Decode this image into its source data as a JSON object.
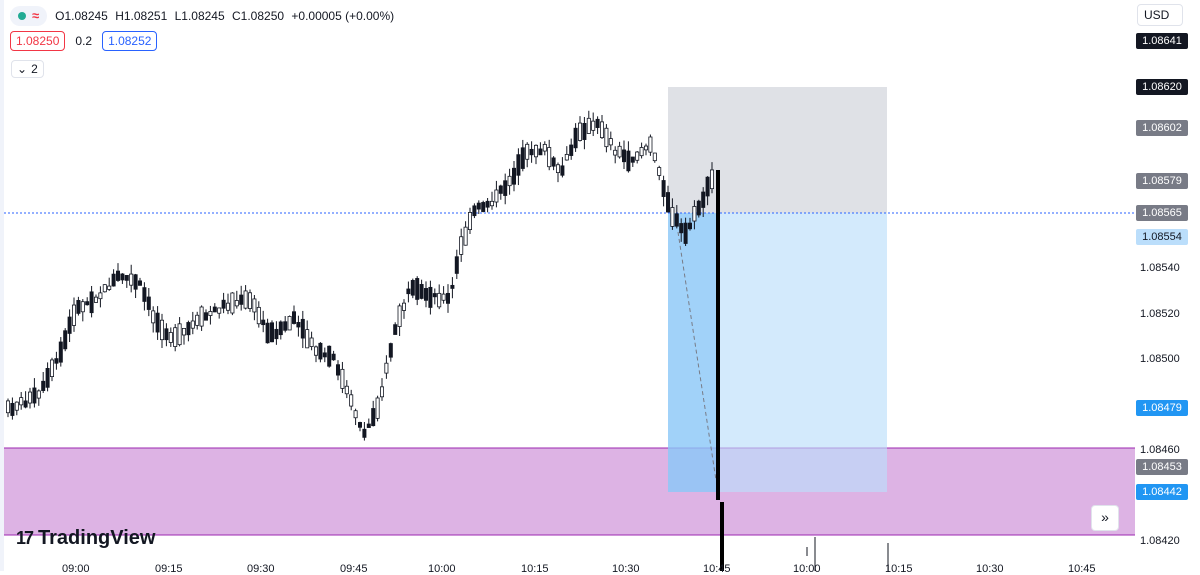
{
  "legend": {
    "ohlc": {
      "open": "O1.08245",
      "high": "H1.08251",
      "low": "L1.08245",
      "close": "C1.08250",
      "change": "+0.00005 (+0.00%)"
    },
    "symbol_icon": "wave-icon"
  },
  "trade": {
    "sell": "1.08250",
    "spread": "0.2",
    "buy": "1.08252"
  },
  "collapse": {
    "label": "2",
    "icon": "chevron-down-icon"
  },
  "currency": "USD",
  "price_axis": {
    "ticks": [
      "1.08540",
      "1.08520",
      "1.08500",
      "1.08460",
      "1.08420"
    ],
    "labels": [
      {
        "text": "1.08641",
        "bg": "#131722"
      },
      {
        "text": "1.08620",
        "bg": "#131722"
      },
      {
        "text": "1.08602",
        "bg": "#787b86"
      },
      {
        "text": "1.08579",
        "bg": "#787b86"
      },
      {
        "text": "1.08565",
        "bg": "#787b86"
      },
      {
        "text": "1.08554",
        "bg": "#bbdefb",
        "color": "#131722"
      },
      {
        "text": "1.08479",
        "bg": "#2196f3"
      },
      {
        "text": "1.08453",
        "bg": "#787b86"
      },
      {
        "text": "1.08442",
        "bg": "#2196f3"
      }
    ]
  },
  "time_axis": [
    "09:00",
    "09:15",
    "09:30",
    "09:45",
    "10:00",
    "10:15",
    "10:30",
    "10:45",
    "10:00",
    "10:15",
    "10:30",
    "10:45"
  ],
  "branding": {
    "name": "TradingView"
  },
  "colors": {
    "up": "#131722",
    "down": "#131722",
    "zone": "#ce93d8",
    "profit": "#bbdefb",
    "stop": "#d1d4dc",
    "price_line": "#2962ff"
  },
  "chart_data": {
    "type": "candlestick",
    "ylim": [
      1.0841,
      1.0865
    ]
  }
}
